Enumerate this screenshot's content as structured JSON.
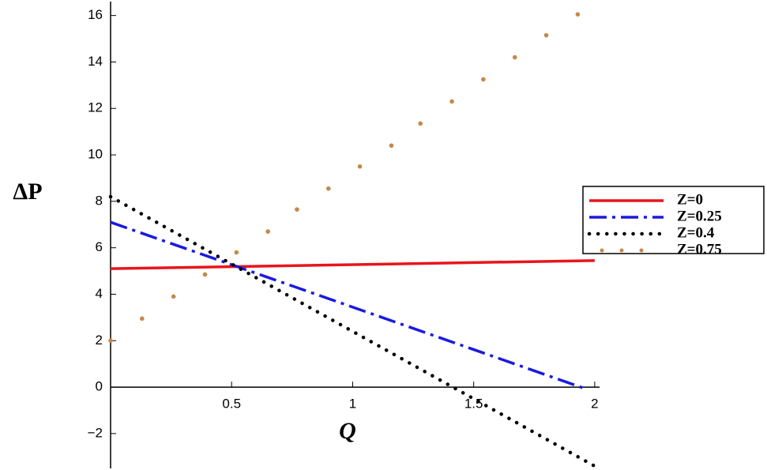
{
  "chart_data": {
    "type": "line",
    "xlabel": "Q",
    "ylabel": "ΔP",
    "xlim": [
      0,
      2.02
    ],
    "ylim": [
      -3.5,
      16.6
    ],
    "xticks": [
      0.5,
      1,
      1.5,
      2
    ],
    "yticks": [
      {
        "value": -2,
        "label": "−2"
      },
      0,
      2,
      4,
      6,
      8,
      10,
      12,
      14,
      16
    ],
    "legend": "right",
    "series": [
      {
        "name": "Z=0",
        "color": "#e8151b",
        "style": "solid",
        "x": [
          0,
          2
        ],
        "values": [
          5.1,
          5.45
        ]
      },
      {
        "name": "Z=0.25",
        "color": "#1a1ae0",
        "style": "dashdot",
        "x": [
          0,
          1.97
        ],
        "values": [
          7.1,
          -0.1
        ]
      },
      {
        "name": "Z=0.4",
        "color": "#000000",
        "style": "dot",
        "x": [
          0,
          2
        ],
        "values": [
          8.2,
          -3.4
        ]
      },
      {
        "name": "Z=0.75",
        "color": "#c5884a",
        "style": "points",
        "x": [
          0,
          0.13,
          0.26,
          0.39,
          0.52,
          0.65,
          0.77,
          0.9,
          1.03,
          1.16,
          1.28,
          1.41,
          1.54,
          1.67,
          1.8,
          1.93
        ],
        "values": [
          2,
          2.95,
          3.9,
          4.85,
          5.8,
          6.7,
          7.65,
          8.55,
          9.5,
          10.4,
          11.35,
          12.3,
          13.25,
          14.2,
          15.15,
          16.05
        ]
      }
    ]
  }
}
